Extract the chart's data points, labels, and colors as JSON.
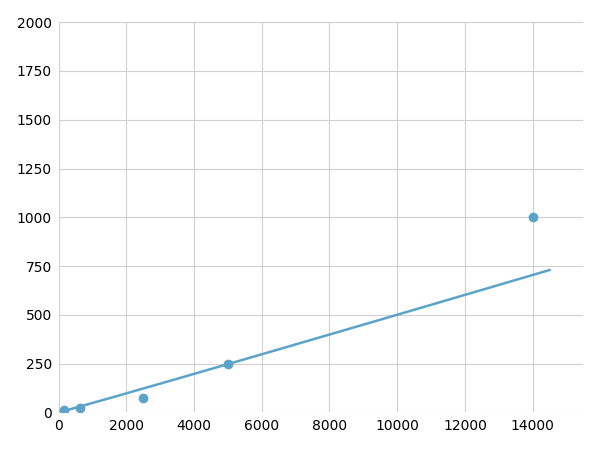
{
  "x": [
    156,
    625,
    2500,
    5000,
    14000
  ],
  "y": [
    10,
    25,
    75,
    250,
    1000
  ],
  "line_color": "#5ba3c9",
  "marker_color": "#5ba3c9",
  "marker_size": 6,
  "line_width": 1.8,
  "xlim": [
    0,
    15500
  ],
  "ylim": [
    0,
    2000
  ],
  "xticks": [
    0,
    2000,
    4000,
    6000,
    8000,
    10000,
    12000,
    14000
  ],
  "yticks": [
    0,
    250,
    500,
    750,
    1000,
    1250,
    1500,
    1750,
    2000
  ],
  "background_color": "#ffffff",
  "grid_color": "#d0d0d0",
  "tick_label_fontsize": 10,
  "figsize": [
    6.0,
    4.5
  ],
  "dpi": 100
}
